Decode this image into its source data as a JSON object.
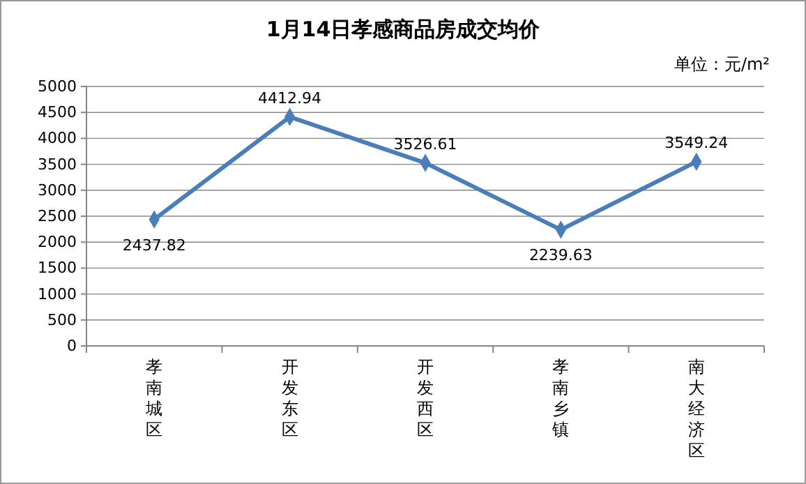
{
  "chart_data": {
    "type": "line",
    "title": "1月14日孝感商品房成交均价",
    "annotations": [
      "单位：元/m²"
    ],
    "categories": [
      "孝南城区",
      "开发东区",
      "开发西区",
      "孝南乡镇",
      "南大经济区"
    ],
    "series": [
      {
        "color": "#4a7ebb",
        "values": [
          2437.82,
          4412.94,
          3526.61,
          2239.63,
          3549.24
        ]
      }
    ],
    "ylim": [
      0,
      5000
    ],
    "yticks": [
      0,
      500,
      1000,
      1500,
      2000,
      2500,
      3000,
      3500,
      4000,
      4500,
      5000
    ],
    "grid": "y",
    "marker": "diamond",
    "data_labels": true
  }
}
